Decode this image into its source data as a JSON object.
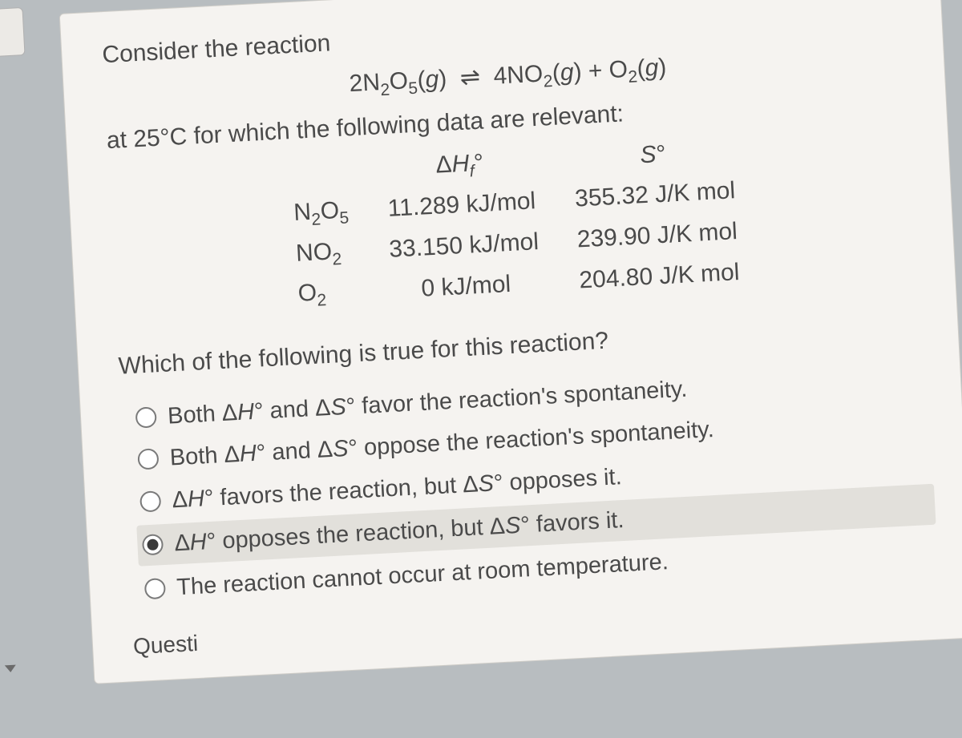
{
  "intro": "Consider the reaction",
  "equation_html": "2N<sub>2</sub>O<sub>5</sub>(<span class='italic'>g</span>) &nbsp;⇌&nbsp; 4NO<sub>2</sub>(<span class='italic'>g</span>) + O<sub>2</sub>(<span class='italic'>g</span>)",
  "condition": "at 25°C for which the following data are relevant:",
  "table": {
    "headers": [
      "",
      "Δ<span class='italic'>H<sub>f</sub></span>°",
      "<span class='italic'>S</span>°"
    ],
    "rows": [
      [
        "N<sub>2</sub>O<sub>5</sub>",
        "11.289 kJ/mol",
        "355.32 J/K mol"
      ],
      [
        "NO<sub>2</sub>",
        "33.150 kJ/mol",
        "239.90 J/K mol"
      ],
      [
        "O<sub>2</sub>",
        "0 kJ/mol",
        "204.80 J/K mol"
      ]
    ]
  },
  "question": "Which of the following is true for this reaction?",
  "options": [
    {
      "html": "Both Δ<span class='italic'>H</span>° and Δ<span class='italic'>S</span>° favor the reaction's spontaneity.",
      "selected": false
    },
    {
      "html": "Both Δ<span class='italic'>H</span>° and Δ<span class='italic'>S</span>° oppose the reaction's spontaneity.",
      "selected": false
    },
    {
      "html": "Δ<span class='italic'>H</span>° favors the reaction, but Δ<span class='italic'>S</span>° opposes it.",
      "selected": false
    },
    {
      "html": "Δ<span class='italic'>H</span>° opposes the reaction, but Δ<span class='italic'>S</span>° favors it.",
      "selected": true
    },
    {
      "html": "The reaction cannot occur at room temperature.",
      "selected": false
    }
  ],
  "next_label": "Questi",
  "colors": {
    "page_bg": "#b8bdc0",
    "card_bg": "#f5f3f0",
    "text": "#4a4a4a",
    "selected_bg": "#e2e0db",
    "radio_border": "#7a7a7a",
    "radio_dot": "#3a3a3a"
  }
}
